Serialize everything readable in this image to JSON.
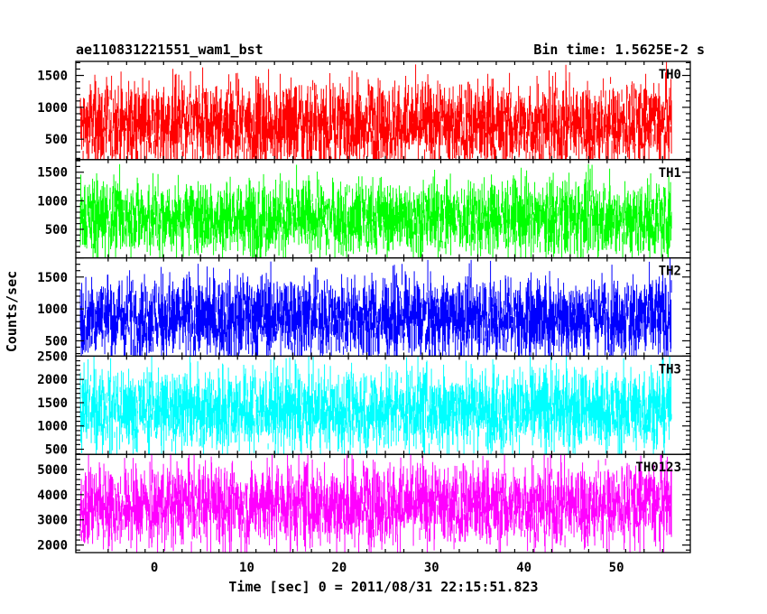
{
  "header": {
    "left_title": "ae110831221551_wam1_bst",
    "right_title": "Bin time: 1.5625E-2 s"
  },
  "chart_data": {
    "type": "line",
    "title": "ae110831221551_wam1_bst",
    "subtitle": "Bin time: 1.5625E-2 s",
    "xlabel": "Time [sec] 0 = 2011/08/31 22:15:51.823",
    "ylabel": "Counts/sec",
    "xlim": [
      -8.5,
      58
    ],
    "x_data_range": [
      -8,
      56
    ],
    "xticks": [
      0,
      10,
      20,
      30,
      40,
      50
    ],
    "bin_time_s": 0.015625,
    "grid": false,
    "series": [
      {
        "name": "TH0",
        "color": "#ff0000",
        "ylim": [
          180,
          1720
        ],
        "yticks": [
          500,
          1000,
          1500
        ],
        "mean": 720,
        "typical_range": [
          120,
          1650
        ]
      },
      {
        "name": "TH1",
        "color": "#00ff00",
        "ylim": [
          0,
          1720
        ],
        "yticks": [
          500,
          1000,
          1500
        ],
        "mean": 700,
        "typical_range": [
          180,
          1650
        ]
      },
      {
        "name": "TH2",
        "color": "#0000ff",
        "ylim": [
          260,
          1800
        ],
        "yticks": [
          500,
          1000,
          1500
        ],
        "mean": 870,
        "typical_range": [
          250,
          1700
        ]
      },
      {
        "name": "TH3",
        "color": "#00ffff",
        "ylim": [
          390,
          2500
        ],
        "yticks": [
          500,
          1000,
          1500,
          2000,
          2500
        ],
        "mean": 1350,
        "typical_range": [
          400,
          2400
        ]
      },
      {
        "name": "TH0123",
        "color": "#ff00ff",
        "ylim": [
          1700,
          5600
        ],
        "yticks": [
          2000,
          3000,
          4000,
          5000
        ],
        "mean": 3600,
        "typical_range": [
          1700,
          5400
        ]
      }
    ]
  }
}
